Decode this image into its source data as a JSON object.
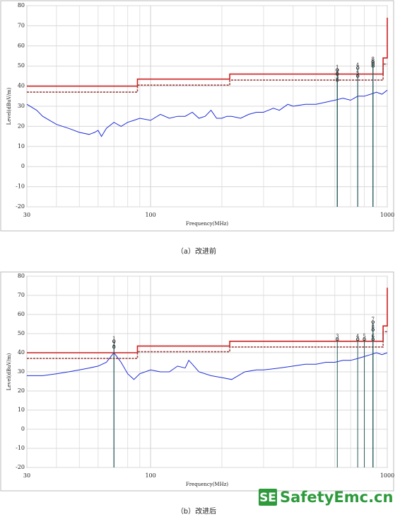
{
  "chart_data": [
    {
      "type": "line",
      "caption": "（a）改进前",
      "xlabel": "Frequency(MHz)",
      "ylabel": "Level(dBuV/m)",
      "xscale": "log",
      "xlim": [
        30,
        1000
      ],
      "xticks": [
        30,
        100,
        1000
      ],
      "minor_xticks": [
        40,
        50,
        60,
        70,
        80,
        90,
        200,
        300,
        400,
        500,
        600,
        700,
        800,
        900
      ],
      "ylim": [
        -20,
        80
      ],
      "yticks": [
        -20,
        -10,
        0,
        10,
        20,
        30,
        40,
        50,
        60,
        70,
        80
      ],
      "grid": true,
      "series": [
        {
          "color": "#1f2fd6",
          "x": [
            30,
            33,
            35,
            40,
            45,
            50,
            55,
            58,
            60,
            62,
            65,
            70,
            75,
            80,
            85,
            90,
            100,
            110,
            120,
            130,
            140,
            150,
            160,
            170,
            180,
            190,
            200,
            210,
            220,
            240,
            260,
            280,
            300,
            330,
            350,
            380,
            400,
            450,
            500,
            550,
            600,
            650,
            700,
            750,
            800,
            850,
            900,
            950,
            1000
          ],
          "values": [
            31,
            28,
            25,
            21,
            19,
            17,
            16,
            17,
            18,
            15,
            19,
            22,
            20,
            22,
            23,
            24,
            23,
            26,
            24,
            25,
            25,
            27,
            24,
            25,
            28,
            24,
            24,
            25,
            25,
            24,
            26,
            27,
            27,
            29,
            28,
            31,
            30,
            31,
            31,
            32,
            33,
            34,
            33,
            35,
            35,
            36,
            37,
            36,
            38
          ]
        },
        {
          "color": "#cc1f1f",
          "x": [
            30,
            88,
            88,
            216,
            216,
            960,
            960,
            1000,
            1000
          ],
          "values": [
            40,
            40,
            43.5,
            43.5,
            46,
            46,
            54,
            54,
            74
          ]
        },
        {
          "color": "#a04040",
          "dash": true,
          "x": [
            30,
            88,
            88,
            216,
            216,
            960,
            960,
            1000
          ],
          "values": [
            37,
            37,
            40.5,
            40.5,
            43,
            43,
            51,
            51
          ]
        }
      ],
      "markers": {
        "x": [
          615,
          615,
          615,
          750,
          750,
          870,
          870,
          870
        ],
        "values": [
          48,
          46,
          43,
          49,
          45,
          51,
          50,
          52
        ],
        "labels": [
          "1",
          "2",
          "3",
          "4",
          "5",
          "6",
          "7",
          "8"
        ]
      }
    },
    {
      "type": "line",
      "caption": "（b）改进后",
      "xlabel": "Frequency(MHz)",
      "ylabel": "Level(dBuV/m)",
      "xscale": "log",
      "xlim": [
        30,
        1000
      ],
      "xticks": [
        30,
        100,
        1000
      ],
      "minor_xticks": [
        40,
        50,
        60,
        70,
        80,
        90,
        200,
        300,
        400,
        500,
        600,
        700,
        800,
        900
      ],
      "ylim": [
        -20,
        80
      ],
      "yticks": [
        -20,
        -10,
        0,
        10,
        20,
        30,
        40,
        50,
        60,
        70,
        80
      ],
      "grid": true,
      "series": [
        {
          "color": "#1f2fd6",
          "x": [
            30,
            35,
            40,
            45,
            50,
            55,
            60,
            65,
            70,
            72,
            75,
            80,
            85,
            90,
            100,
            110,
            120,
            130,
            140,
            145,
            150,
            160,
            180,
            200,
            220,
            250,
            280,
            300,
            350,
            400,
            450,
            500,
            550,
            600,
            650,
            700,
            750,
            800,
            850,
            900,
            950,
            1000
          ],
          "values": [
            28,
            28,
            29,
            30,
            31,
            32,
            33,
            35,
            40,
            38,
            35,
            29,
            26,
            29,
            31,
            30,
            30,
            33,
            32,
            36,
            34,
            30,
            28,
            27,
            26,
            30,
            31,
            31,
            32,
            33,
            34,
            34,
            35,
            35,
            36,
            36,
            37,
            38,
            39,
            40,
            39,
            40
          ]
        },
        {
          "color": "#cc1f1f",
          "x": [
            30,
            88,
            88,
            216,
            216,
            960,
            960,
            1000,
            1000
          ],
          "values": [
            40,
            40,
            43.5,
            43.5,
            46,
            46,
            54,
            54,
            74
          ]
        },
        {
          "color": "#a04040",
          "dash": true,
          "x": [
            30,
            88,
            88,
            216,
            216,
            960,
            960,
            1000
          ],
          "values": [
            37,
            37,
            40.5,
            40.5,
            43,
            43,
            51,
            51
          ]
        }
      ],
      "markers": {
        "x": [
          70,
          70,
          615,
          750,
          800,
          870,
          870,
          870
        ],
        "values": [
          46,
          43,
          47,
          47,
          47,
          47,
          56,
          52
        ],
        "labels": [
          "1",
          "2",
          "3",
          "4",
          "5",
          "6",
          "7",
          "8"
        ]
      }
    }
  ],
  "watermark": {
    "logo": "SE",
    "text": "SafetyEmc.cn"
  }
}
